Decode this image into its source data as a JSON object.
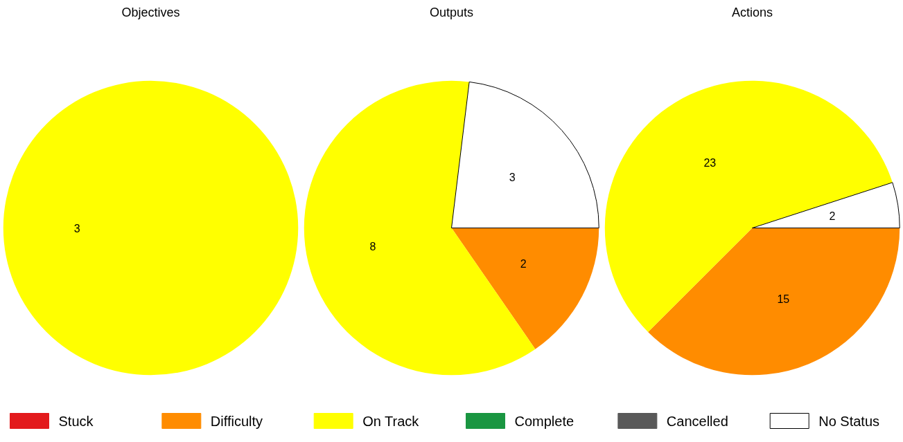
{
  "chart_data": [
    {
      "type": "pie",
      "title": "Objectives",
      "categories": [
        "Stuck",
        "Difficulty",
        "On Track",
        "Complete",
        "Cancelled",
        "No Status"
      ],
      "colors": [
        "#e31a1c",
        "#ff8c00",
        "#ffff00",
        "#1a9641",
        "#595959",
        "#ffffff"
      ],
      "values": [
        0,
        0,
        3,
        0,
        0,
        0
      ],
      "value_labels": [
        null,
        null,
        "3",
        null,
        null,
        null
      ],
      "legend": "bottom"
    },
    {
      "type": "pie",
      "title": "Outputs",
      "categories": [
        null,
        null,
        null,
        null,
        null,
        null
      ],
      "colors": [
        "#e31a1c",
        "#ff8c00",
        "#ffff00",
        "#1a9641",
        "#595959",
        "#ffffff"
      ],
      "values": [
        0,
        2,
        8,
        0,
        0,
        3
      ],
      "value_labels": [
        null,
        "2",
        "8",
        null,
        null,
        "3"
      ]
    },
    {
      "type": "pie",
      "title": "Actions",
      "categories": [
        null,
        null,
        null,
        null,
        null,
        null
      ],
      "colors": [
        "#e31a1c",
        "#ff8c00",
        "#ffff00",
        "#1a9641",
        "#595959",
        "#ffffff"
      ],
      "values": [
        0,
        15,
        23,
        0,
        0,
        2
      ],
      "value_labels": [
        null,
        "15",
        "23",
        null,
        null,
        "2"
      ]
    }
  ]
}
